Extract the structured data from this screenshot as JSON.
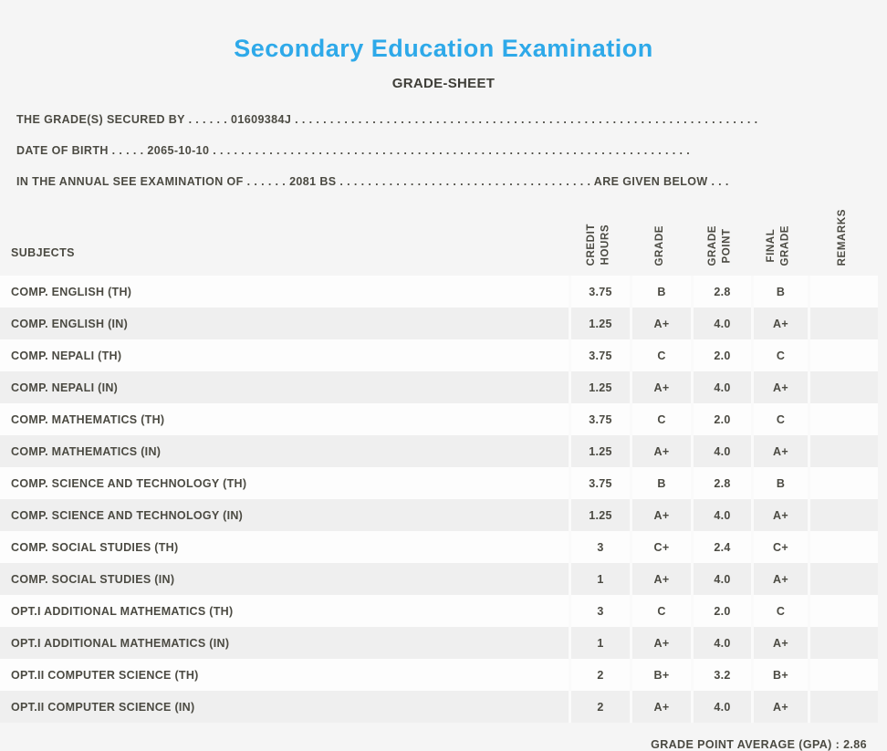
{
  "page": {
    "title": "Secondary Education Examination",
    "subtitle": "GRADE-SHEET"
  },
  "info_lines": [
    {
      "label": "THE GRADE(S) SECURED BY",
      "dots_before": ". . . . . .",
      "value": "01609384J",
      "dots_after": ". . . . . . . . . . . . . . . . . . . . . . . . . . . . . . . . . . . . . . . . . . . . . . . . . . . . . . . . . . . . . . . . . .",
      "suffix": "",
      "dots_end": ""
    },
    {
      "label": "DATE OF BIRTH",
      "dots_before": ". . . . .",
      "value": "2065-10-10",
      "dots_after": ". . . . . . . . . . . . . . . . . . . . . . . . . . . . . . . . . . . . . . . . . . . . . . . . . . . . . . . . . . . . . . . . . . . .",
      "suffix": "",
      "dots_end": ""
    },
    {
      "label": "IN THE ANNUAL SEE EXAMINATION OF",
      "dots_before": ". . . . . .",
      "value": "2081 BS",
      "dots_after": ". . . . . . . . . . . . . . . . . . . . . . . . . . . . . . . . . . . .",
      "suffix": "ARE GIVEN BELOW",
      "dots_end": ". . ."
    }
  ],
  "table": {
    "columns": [
      "SUBJECTS",
      "CREDIT\nHOURS",
      "GRADE",
      "GRADE\nPOINT",
      "FINAL\nGRADE",
      "REMARKS"
    ],
    "rows": [
      {
        "subject": "COMP. ENGLISH (TH)",
        "credit_hours": "3.75",
        "grade": "B",
        "grade_point": "2.8",
        "final_grade": "B",
        "remarks": ""
      },
      {
        "subject": "COMP. ENGLISH (IN)",
        "credit_hours": "1.25",
        "grade": "A+",
        "grade_point": "4.0",
        "final_grade": "A+",
        "remarks": ""
      },
      {
        "subject": "COMP. NEPALI (TH)",
        "credit_hours": "3.75",
        "grade": "C",
        "grade_point": "2.0",
        "final_grade": "C",
        "remarks": ""
      },
      {
        "subject": "COMP. NEPALI (IN)",
        "credit_hours": "1.25",
        "grade": "A+",
        "grade_point": "4.0",
        "final_grade": "A+",
        "remarks": ""
      },
      {
        "subject": "COMP. MATHEMATICS (TH)",
        "credit_hours": "3.75",
        "grade": "C",
        "grade_point": "2.0",
        "final_grade": "C",
        "remarks": ""
      },
      {
        "subject": "COMP. MATHEMATICS (IN)",
        "credit_hours": "1.25",
        "grade": "A+",
        "grade_point": "4.0",
        "final_grade": "A+",
        "remarks": ""
      },
      {
        "subject": "COMP. SCIENCE AND TECHNOLOGY (TH)",
        "credit_hours": "3.75",
        "grade": "B",
        "grade_point": "2.8",
        "final_grade": "B",
        "remarks": ""
      },
      {
        "subject": "COMP. SCIENCE AND TECHNOLOGY (IN)",
        "credit_hours": "1.25",
        "grade": "A+",
        "grade_point": "4.0",
        "final_grade": "A+",
        "remarks": ""
      },
      {
        "subject": "COMP. SOCIAL STUDIES (TH)",
        "credit_hours": "3",
        "grade": "C+",
        "grade_point": "2.4",
        "final_grade": "C+",
        "remarks": ""
      },
      {
        "subject": "COMP. SOCIAL STUDIES (IN)",
        "credit_hours": "1",
        "grade": "A+",
        "grade_point": "4.0",
        "final_grade": "A+",
        "remarks": ""
      },
      {
        "subject": "OPT.I ADDITIONAL MATHEMATICS (TH)",
        "credit_hours": "3",
        "grade": "C",
        "grade_point": "2.0",
        "final_grade": "C",
        "remarks": ""
      },
      {
        "subject": "OPT.I ADDITIONAL MATHEMATICS (IN)",
        "credit_hours": "1",
        "grade": "A+",
        "grade_point": "4.0",
        "final_grade": "A+",
        "remarks": ""
      },
      {
        "subject": "OPT.II COMPUTER SCIENCE (TH)",
        "credit_hours": "2",
        "grade": "B+",
        "grade_point": "3.2",
        "final_grade": "B+",
        "remarks": ""
      },
      {
        "subject": "OPT.II COMPUTER SCIENCE (IN)",
        "credit_hours": "2",
        "grade": "A+",
        "grade_point": "4.0",
        "final_grade": "A+",
        "remarks": ""
      }
    ]
  },
  "footer": {
    "gpa_label": "GRADE POINT AVERAGE (GPA) :",
    "gpa_value": "2.86"
  },
  "colors": {
    "title_accent": "#2ea9e9",
    "text": "#4b4a42",
    "background": "#f5f5f5",
    "row_light": "#fdfdfd",
    "row_dark": "#efefef"
  }
}
